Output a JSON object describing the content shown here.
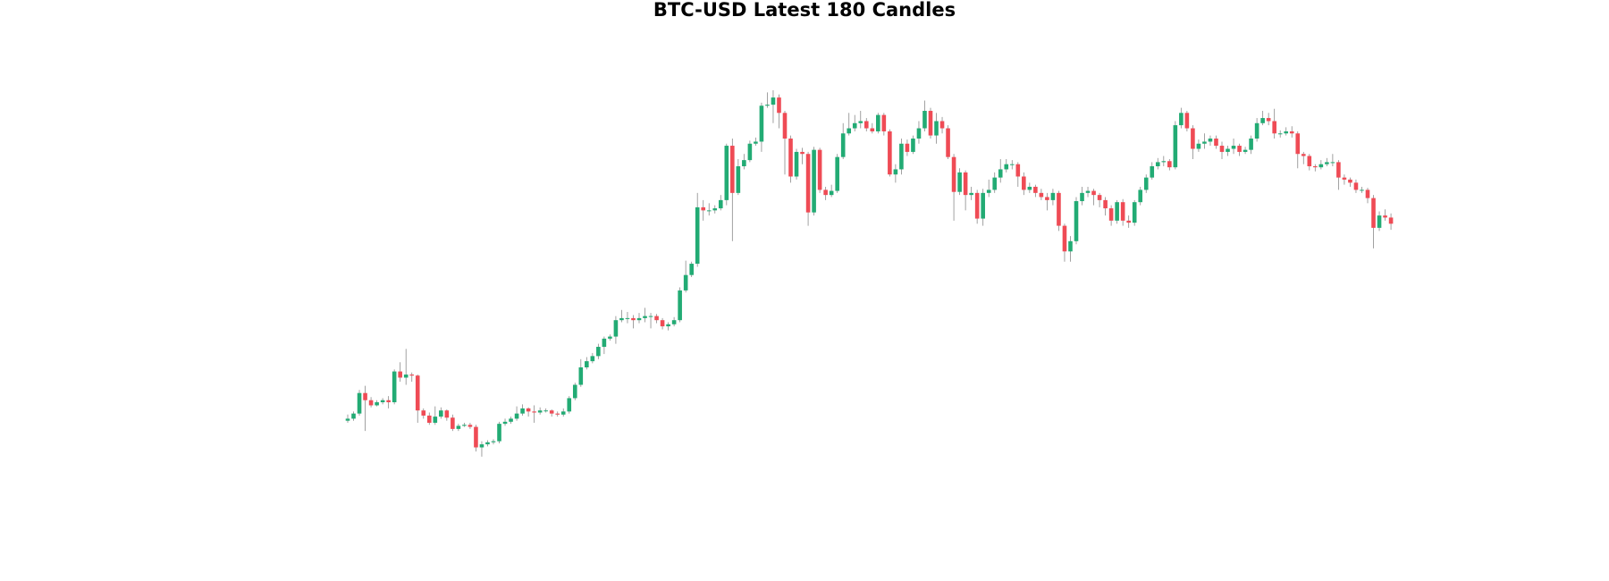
{
  "chart_data": {
    "type": "candlestick",
    "title": "BTC-USD Latest 180 Candles",
    "up_color": "#22ab74",
    "down_color": "#ef4b55",
    "wick_color": "#8a8a8a",
    "ylim": [
      0,
      480
    ],
    "open": [
      90,
      92,
      97,
      117,
      110,
      105,
      108,
      110,
      108,
      138,
      132,
      135,
      134,
      100,
      95,
      88,
      94,
      100,
      93,
      82,
      85,
      86,
      84,
      64,
      67,
      69,
      70,
      87,
      89,
      92,
      97,
      102,
      99,
      98,
      100,
      100,
      97,
      96,
      99,
      112,
      125,
      142,
      148,
      153,
      162,
      170,
      172,
      188,
      190,
      190,
      188,
      190,
      192,
      192,
      188,
      182,
      184,
      188,
      217,
      232,
      243,
      298,
      295,
      295,
      297,
      305,
      358,
      312,
      338,
      344,
      360,
      362,
      397,
      398,
      405,
      390,
      365,
      328,
      352,
      350,
      293,
      354,
      315,
      310,
      314,
      347,
      370,
      375,
      380,
      382,
      375,
      372,
      388,
      372,
      330,
      335,
      360,
      352,
      365,
      375,
      392,
      368,
      382,
      375,
      347,
      313,
      332,
      310,
      312,
      287,
      312,
      315,
      327,
      335,
      340,
      340,
      328,
      315,
      318,
      312,
      308,
      305,
      312,
      280,
      255,
      265,
      304,
      312,
      314,
      310,
      305,
      297,
      285,
      303,
      285,
      283,
      303,
      315,
      327,
      338,
      342,
      343,
      337,
      378,
      390,
      375,
      355,
      360,
      362,
      365,
      358,
      352,
      355,
      358,
      352,
      354,
      365,
      380,
      385,
      382,
      370,
      370,
      372,
      370,
      350,
      348,
      338,
      337,
      340,
      342,
      342,
      327,
      325,
      322,
      315,
      315,
      307,
      278,
      290,
      288
    ],
    "high": [
      96,
      99,
      120,
      124,
      113,
      110,
      112,
      114,
      140,
      147,
      160,
      137,
      135,
      102,
      98,
      104,
      103,
      101,
      96,
      87,
      88,
      88,
      86,
      70,
      71,
      72,
      89,
      92,
      94,
      104,
      106,
      103,
      105,
      103,
      102,
      101,
      99,
      102,
      114,
      127,
      150,
      152,
      156,
      165,
      172,
      174,
      192,
      198,
      196,
      193,
      195,
      200,
      195,
      194,
      190,
      186,
      191,
      220,
      246,
      245,
      312,
      305,
      302,
      300,
      310,
      360,
      365,
      345,
      350,
      363,
      366,
      400,
      410,
      412,
      408,
      392,
      368,
      355,
      356,
      352,
      357,
      356,
      318,
      320,
      350,
      380,
      390,
      388,
      392,
      385,
      380,
      390,
      390,
      374,
      340,
      365,
      364,
      368,
      382,
      402,
      395,
      390,
      386,
      378,
      350,
      336,
      334,
      318,
      315,
      316,
      325,
      332,
      345,
      345,
      344,
      342,
      332,
      322,
      320,
      316,
      312,
      316,
      314,
      282,
      270,
      308,
      318,
      318,
      316,
      312,
      308,
      300,
      305,
      306,
      290,
      305,
      318,
      330,
      342,
      346,
      348,
      345,
      382,
      395,
      392,
      378,
      364,
      370,
      368,
      368,
      362,
      358,
      365,
      360,
      357,
      368,
      385,
      392,
      390,
      394,
      373,
      376,
      377,
      372,
      352,
      350,
      340,
      344,
      346,
      350,
      344,
      330,
      327,
      325,
      318,
      317,
      310,
      294,
      296,
      292
    ],
    "low": [
      88,
      90,
      95,
      80,
      103,
      104,
      106,
      102,
      106,
      128,
      125,
      128,
      88,
      92,
      86,
      86,
      92,
      90,
      80,
      80,
      84,
      82,
      60,
      55,
      65,
      67,
      68,
      85,
      87,
      90,
      95,
      94,
      88,
      96,
      98,
      94,
      94,
      94,
      97,
      110,
      123,
      140,
      146,
      150,
      155,
      168,
      165,
      186,
      185,
      180,
      185,
      186,
      180,
      185,
      179,
      178,
      182,
      186,
      215,
      230,
      240,
      285,
      290,
      292,
      295,
      300,
      265,
      310,
      335,
      342,
      358,
      352,
      395,
      380,
      375,
      330,
      322,
      325,
      340,
      280,
      290,
      312,
      305,
      308,
      312,
      345,
      368,
      372,
      375,
      372,
      370,
      370,
      368,
      328,
      322,
      330,
      348,
      350,
      360,
      372,
      365,
      360,
      370,
      345,
      285,
      310,
      295,
      305,
      282,
      280,
      308,
      312,
      322,
      332,
      335,
      318,
      310,
      312,
      308,
      305,
      295,
      300,
      275,
      245,
      245,
      262,
      300,
      308,
      300,
      298,
      290,
      280,
      282,
      280,
      278,
      280,
      300,
      312,
      325,
      335,
      338,
      334,
      335,
      375,
      372,
      345,
      352,
      355,
      358,
      355,
      345,
      348,
      350,
      348,
      350,
      350,
      362,
      378,
      378,
      365,
      366,
      368,
      366,
      336,
      340,
      334,
      333,
      335,
      338,
      338,
      315,
      320,
      318,
      312,
      312,
      302,
      258,
      275,
      285,
      276
    ],
    "close": [
      92,
      97,
      117,
      110,
      105,
      108,
      110,
      108,
      138,
      132,
      135,
      134,
      100,
      95,
      88,
      94,
      100,
      93,
      82,
      85,
      86,
      84,
      64,
      67,
      69,
      70,
      87,
      89,
      92,
      97,
      102,
      99,
      98,
      100,
      100,
      97,
      96,
      99,
      112,
      125,
      142,
      148,
      153,
      162,
      170,
      172,
      188,
      190,
      190,
      188,
      190,
      192,
      192,
      188,
      182,
      184,
      188,
      217,
      232,
      243,
      298,
      295,
      295,
      297,
      305,
      358,
      312,
      338,
      344,
      360,
      362,
      397,
      398,
      405,
      390,
      365,
      328,
      352,
      350,
      293,
      354,
      315,
      310,
      314,
      347,
      370,
      375,
      380,
      382,
      375,
      372,
      388,
      372,
      330,
      335,
      360,
      352,
      365,
      375,
      392,
      368,
      382,
      375,
      347,
      313,
      332,
      310,
      312,
      287,
      312,
      315,
      327,
      335,
      340,
      340,
      328,
      315,
      318,
      312,
      308,
      305,
      312,
      280,
      255,
      265,
      304,
      312,
      314,
      310,
      305,
      297,
      285,
      303,
      285,
      283,
      303,
      315,
      327,
      338,
      342,
      343,
      337,
      378,
      390,
      375,
      355,
      360,
      362,
      365,
      358,
      352,
      355,
      358,
      352,
      354,
      365,
      380,
      385,
      382,
      370,
      370,
      372,
      370,
      350,
      348,
      338,
      337,
      340,
      342,
      342,
      327,
      325,
      322,
      315,
      315,
      307,
      278,
      290,
      288,
      282
    ]
  }
}
